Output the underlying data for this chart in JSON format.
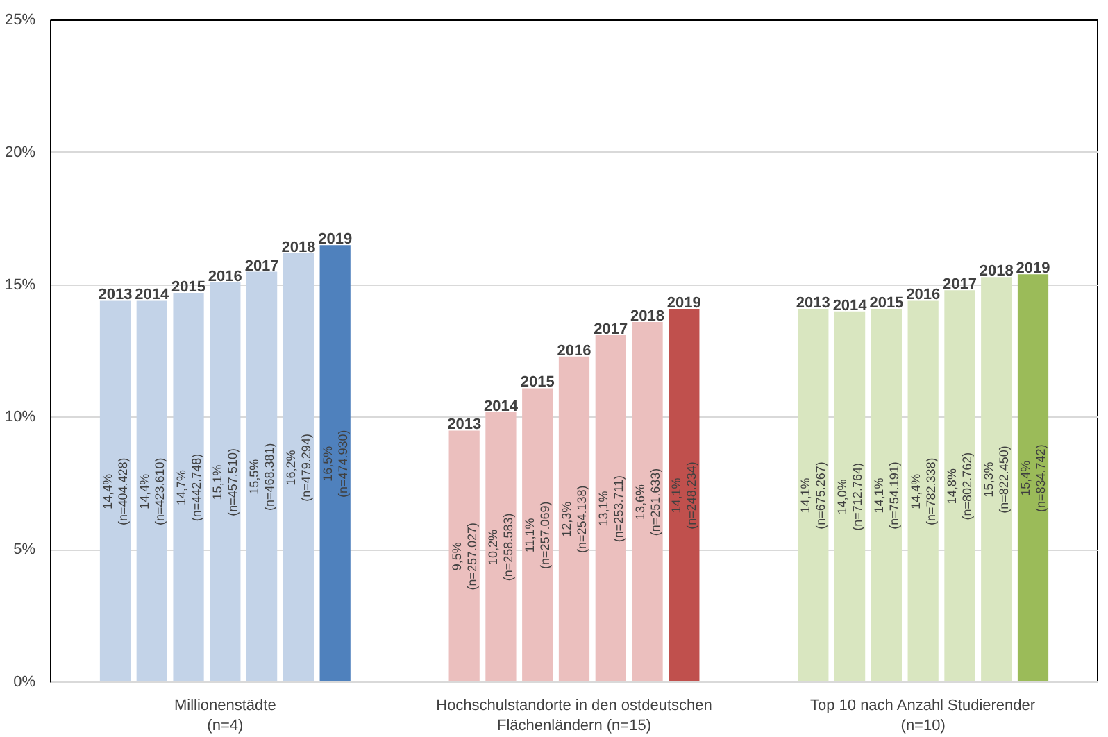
{
  "chart_data": {
    "type": "bar",
    "categories": [
      "Millionenstädte\n(n=4)",
      "Hochschulstandorte in den ostdeutschen\nFlächenländern (n=15)",
      "Top 10 nach Anzahl Studierender\n(n=10)"
    ],
    "series": [
      {
        "name": "2013",
        "colors": [
          "#c3d3e8",
          "#ebbfbe",
          "#d9e6c0"
        ],
        "values": [
          14.4,
          9.5,
          14.1
        ],
        "value_labels": [
          "14,4%\n(n=404.428)",
          "9,5%\n(n=257.027)",
          "14,1%\n(n=675.267)"
        ]
      },
      {
        "name": "2014",
        "colors": [
          "#c3d3e8",
          "#ebbfbe",
          "#d9e6c0"
        ],
        "values": [
          14.4,
          10.2,
          14.0
        ],
        "value_labels": [
          "14,4%\n(n=423.610)",
          "10,2%\n(n=258.583)",
          "14,0%\n(n=712.764)"
        ]
      },
      {
        "name": "2015",
        "colors": [
          "#c3d3e8",
          "#ebbfbe",
          "#d9e6c0"
        ],
        "values": [
          14.7,
          11.1,
          14.1
        ],
        "value_labels": [
          "14,7%\n(n=442.748)",
          "11,1%\n(n=257.069)",
          "14,1%\n(n=754.191)"
        ]
      },
      {
        "name": "2016",
        "colors": [
          "#c3d3e8",
          "#ebbfbe",
          "#d9e6c0"
        ],
        "values": [
          15.1,
          12.3,
          14.4
        ],
        "value_labels": [
          "15,1%\n(n=457.510)",
          "12,3%\n(n=254.138)",
          "14,4%\n(n=782.338)"
        ]
      },
      {
        "name": "2017",
        "colors": [
          "#c3d3e8",
          "#ebbfbe",
          "#d9e6c0"
        ],
        "values": [
          15.5,
          13.1,
          14.8
        ],
        "value_labels": [
          "15,5%\n(n=468.381)",
          "13,1%\n(n=253.711)",
          "14,8%\n(n=802.762)"
        ]
      },
      {
        "name": "2018",
        "colors": [
          "#c3d3e8",
          "#ebbfbe",
          "#d9e6c0"
        ],
        "values": [
          16.2,
          13.6,
          15.3
        ],
        "value_labels": [
          "16,2%\n(n=479.294)",
          "13,6%\n(n=251.633)",
          "15,3%\n(n=822.450)"
        ]
      },
      {
        "name": "2019",
        "colors": [
          "#4f81bd",
          "#c0504d",
          "#9bbb59"
        ],
        "values": [
          16.5,
          14.1,
          15.4
        ],
        "value_labels": [
          "16,5%\n(n=474.930)",
          "14,1%\n(n=248.234)",
          "15,4%\n(n=834.742)"
        ]
      }
    ],
    "ylim": [
      0,
      25
    ],
    "yticks": [
      {
        "value": 0,
        "label": "0%"
      },
      {
        "value": 5,
        "label": "5%"
      },
      {
        "value": 10,
        "label": "10%"
      },
      {
        "value": 15,
        "label": "15%"
      },
      {
        "value": 20,
        "label": "20%"
      },
      {
        "value": 25,
        "label": "25%"
      }
    ],
    "grid": "y"
  }
}
